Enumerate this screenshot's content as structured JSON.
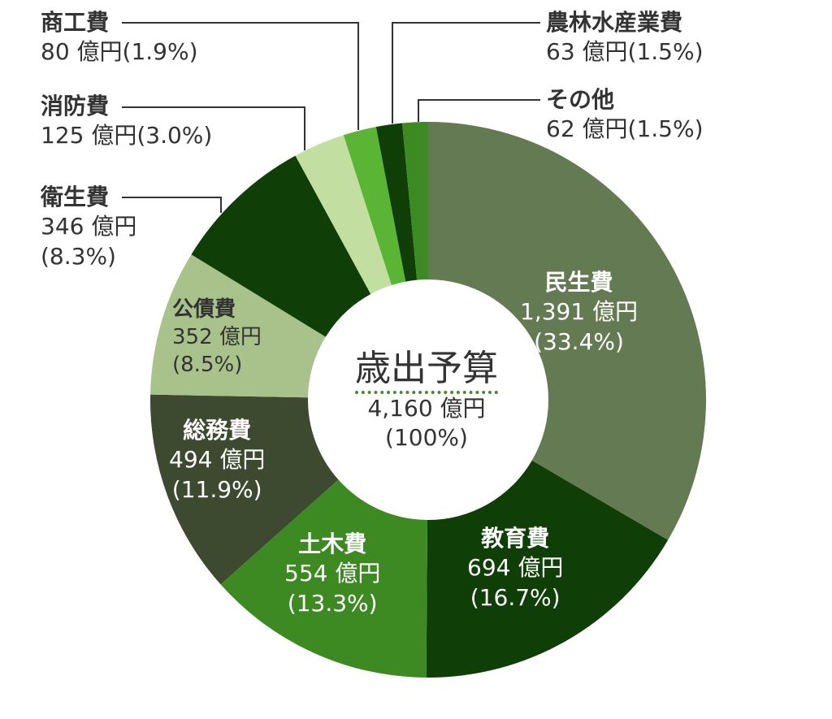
{
  "chart_data": {
    "type": "pie",
    "title": "歳出予算",
    "total_label": "4,160 億円",
    "total_pct": "(100%)",
    "unit": "億円",
    "slices": [
      {
        "name": "民生費",
        "value": 1391,
        "value_label": "1,391 億円",
        "pct": "(33.4%)",
        "color": "#647a52"
      },
      {
        "name": "教育費",
        "value": 694,
        "value_label": "694 億円",
        "pct": "(16.7%)",
        "color": "#0f3f06"
      },
      {
        "name": "土木費",
        "value": 554,
        "value_label": "554 億円",
        "pct": "(13.3%)",
        "color": "#3d8a22"
      },
      {
        "name": "総務費",
        "value": 494,
        "value_label": "494 億円",
        "pct": "(11.9%)",
        "color": "#3e4a30"
      },
      {
        "name": "公債費",
        "value": 352,
        "value_label": "352 億円",
        "pct": "(8.5%)",
        "color": "#a9c28b"
      },
      {
        "name": "衛生費",
        "value": 346,
        "value_label": "346 億円",
        "pct": "(8.3%)",
        "color": "#0f3f06"
      },
      {
        "name": "消防費",
        "value": 125,
        "value_label": "125 億円(3.0%)",
        "pct": "",
        "color": "#c2dea0"
      },
      {
        "name": "商工費",
        "value": 80,
        "value_label": "80 億円(1.9%)",
        "pct": "",
        "color": "#5bb534"
      },
      {
        "name": "農林水産業費",
        "value": 63,
        "value_label": "63 億円(1.5%)",
        "pct": "",
        "color": "#0f3f06"
      },
      {
        "name": "その他",
        "value": 62,
        "value_label": "62 億円(1.5%)",
        "pct": "",
        "color": "#3d8a22"
      }
    ]
  }
}
